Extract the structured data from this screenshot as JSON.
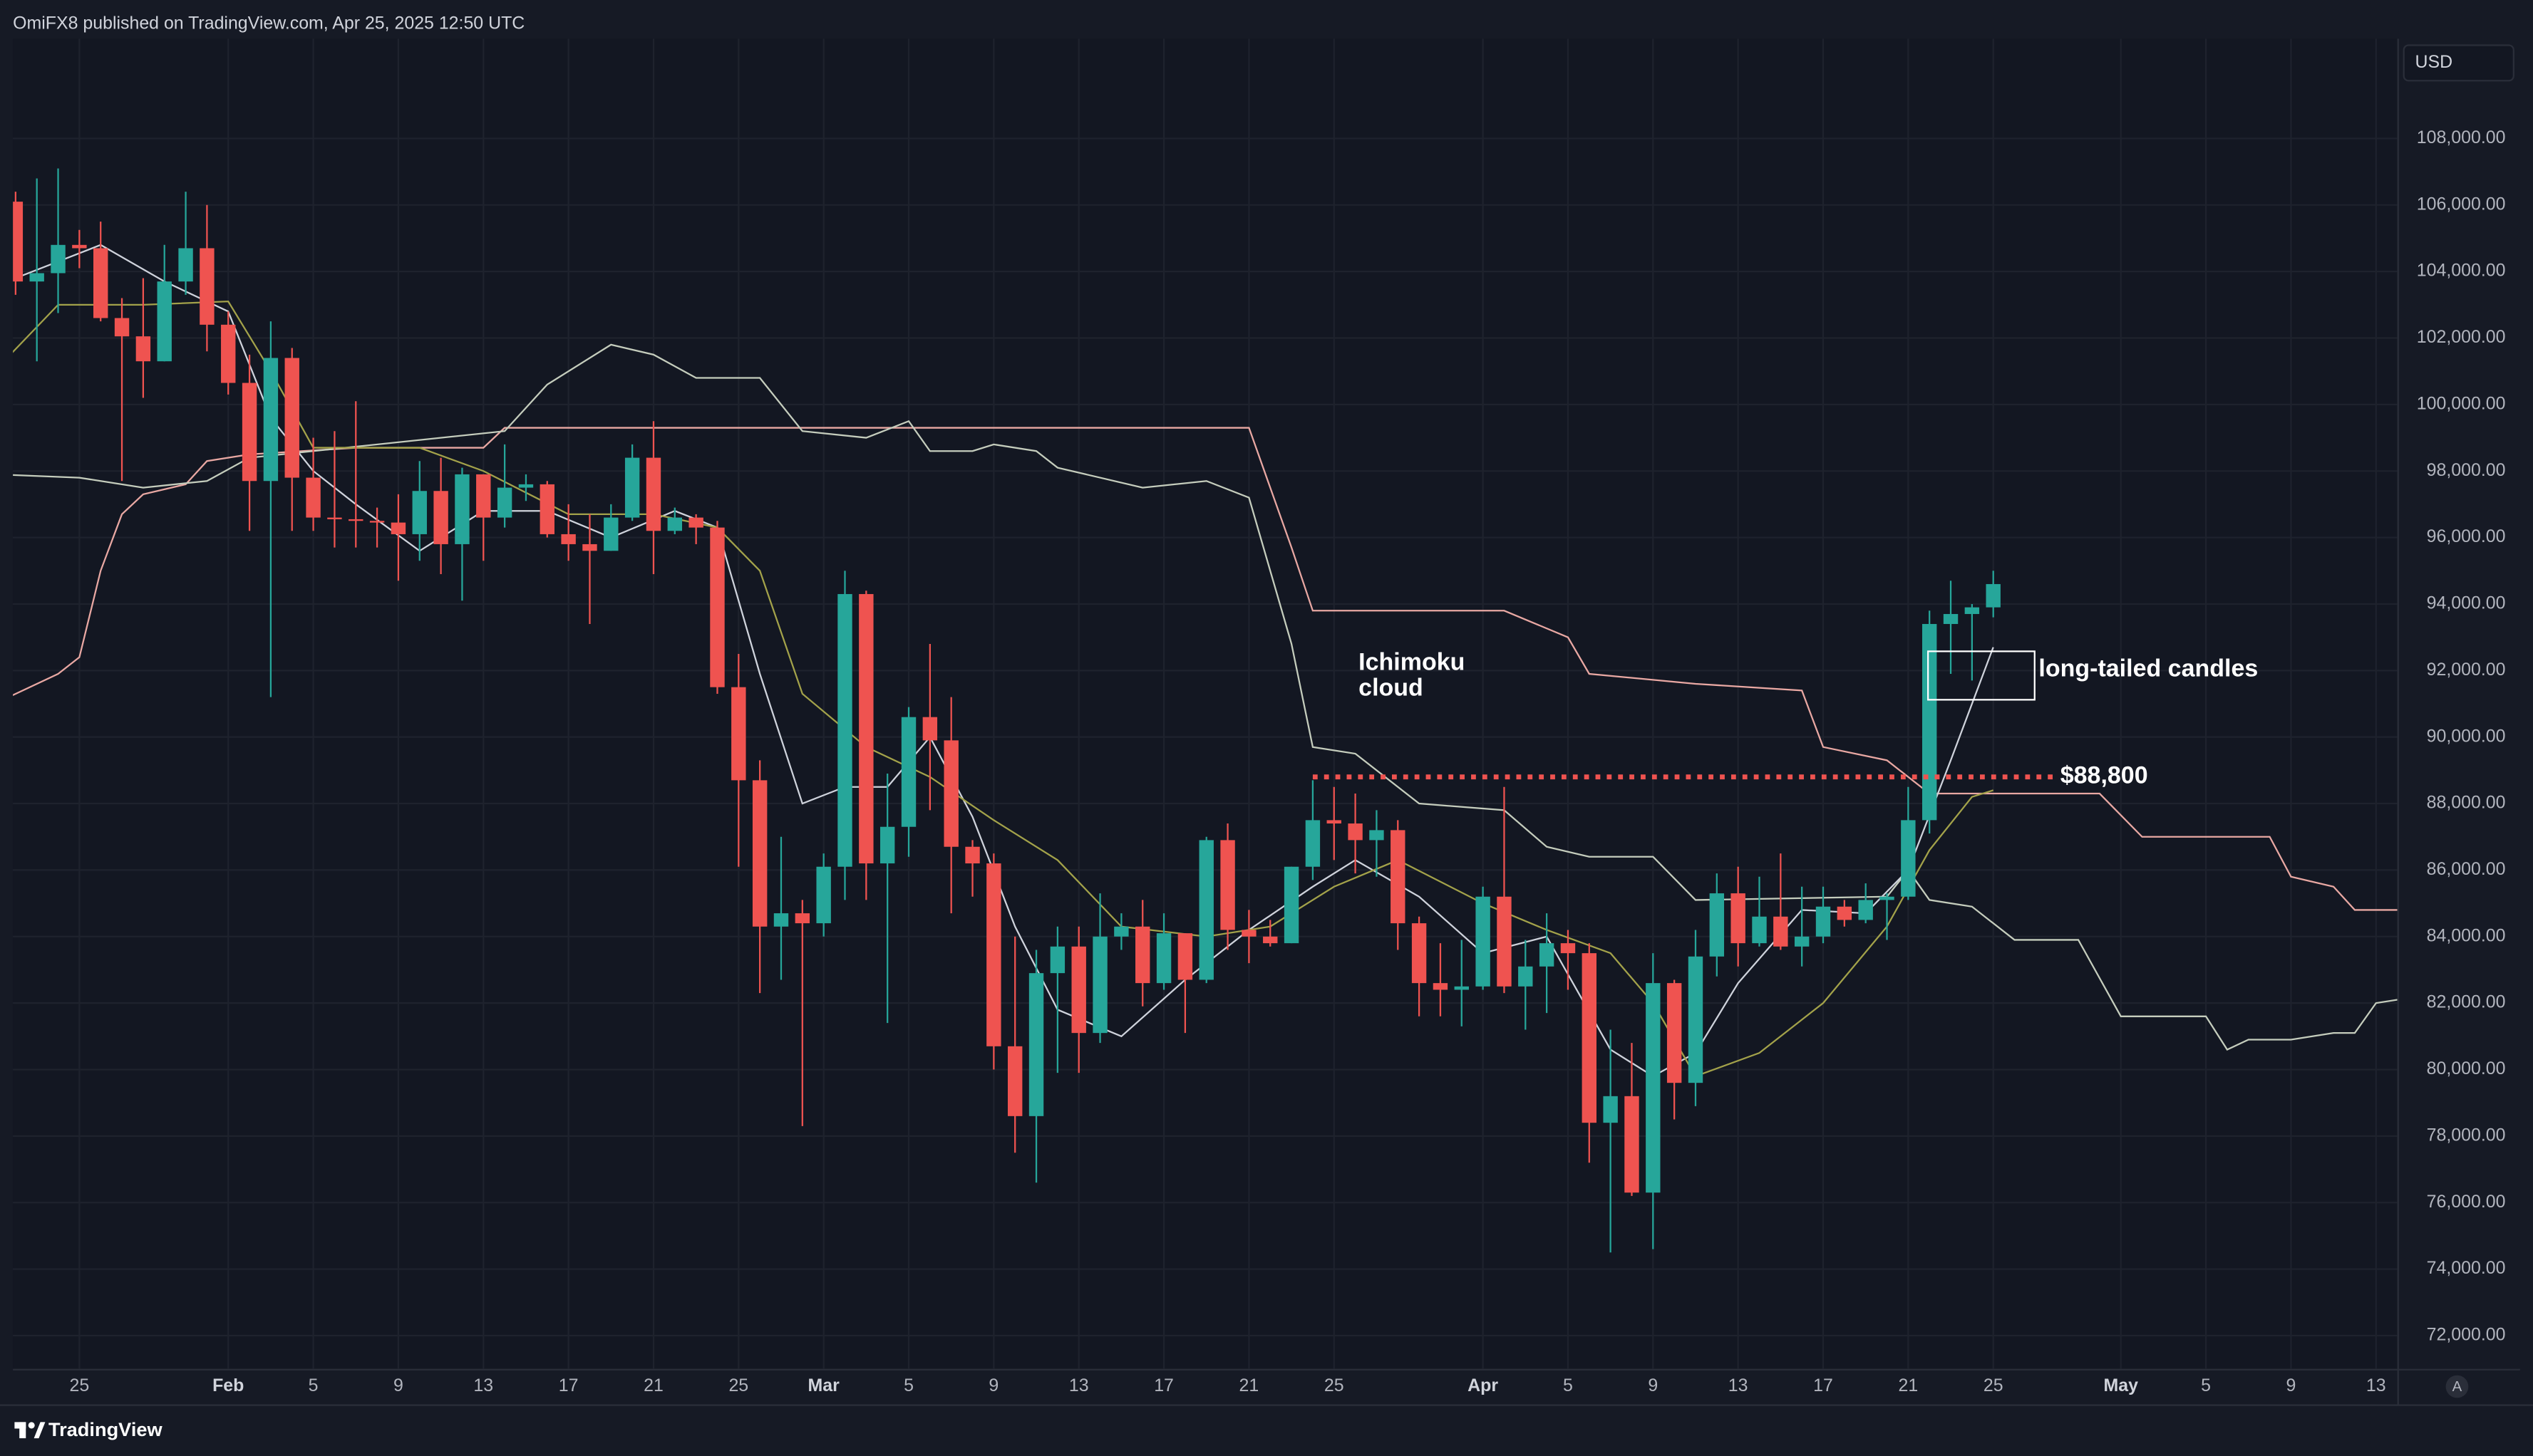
{
  "header": {
    "text": "OmiFX8 published on TradingView.com, Apr 25, 2025 12:50 UTC"
  },
  "footer": {
    "brand": "TradingView"
  },
  "chart_data": {
    "type": "candlestick",
    "currency": "USD",
    "scale_button": "A",
    "up_color": "#26a69a",
    "down_color": "#ef5350",
    "grid": true,
    "xlim": [
      "2025-01-21T21:00Z",
      "2025-05-14T00:00Z"
    ],
    "ylim": [
      71000,
      111000
    ],
    "xticks": [
      {
        "value": "2025-01-25",
        "label": "25"
      },
      {
        "value": "2025-02-01",
        "label": "Feb"
      },
      {
        "value": "2025-02-05",
        "label": "5"
      },
      {
        "value": "2025-02-09",
        "label": "9"
      },
      {
        "value": "2025-02-13",
        "label": "13"
      },
      {
        "value": "2025-02-17",
        "label": "17"
      },
      {
        "value": "2025-02-21",
        "label": "21"
      },
      {
        "value": "2025-02-25",
        "label": "25"
      },
      {
        "value": "2025-03-01",
        "label": "Mar"
      },
      {
        "value": "2025-03-05",
        "label": "5"
      },
      {
        "value": "2025-03-09",
        "label": "9"
      },
      {
        "value": "2025-03-13",
        "label": "13"
      },
      {
        "value": "2025-03-17",
        "label": "17"
      },
      {
        "value": "2025-03-21",
        "label": "21"
      },
      {
        "value": "2025-03-25",
        "label": "25"
      },
      {
        "value": "2025-04-01",
        "label": "Apr"
      },
      {
        "value": "2025-04-05",
        "label": "5"
      },
      {
        "value": "2025-04-09",
        "label": "9"
      },
      {
        "value": "2025-04-13",
        "label": "13"
      },
      {
        "value": "2025-04-17",
        "label": "17"
      },
      {
        "value": "2025-04-21",
        "label": "21"
      },
      {
        "value": "2025-04-25",
        "label": "25"
      },
      {
        "value": "2025-05-01",
        "label": "May"
      },
      {
        "value": "2025-05-05",
        "label": "5"
      },
      {
        "value": "2025-05-09",
        "label": "9"
      },
      {
        "value": "2025-05-13",
        "label": "13"
      }
    ],
    "yticks": [
      {
        "value": 72000,
        "label": "72,000.00"
      },
      {
        "value": 74000,
        "label": "74,000.00"
      },
      {
        "value": 76000,
        "label": "76,000.00"
      },
      {
        "value": 78000,
        "label": "78,000.00"
      },
      {
        "value": 80000,
        "label": "80,000.00"
      },
      {
        "value": 82000,
        "label": "82,000.00"
      },
      {
        "value": 84000,
        "label": "84,000.00"
      },
      {
        "value": 86000,
        "label": "86,000.00"
      },
      {
        "value": 88000,
        "label": "88,000.00"
      },
      {
        "value": 90000,
        "label": "90,000.00"
      },
      {
        "value": 92000,
        "label": "92,000.00"
      },
      {
        "value": 94000,
        "label": "94,000.00"
      },
      {
        "value": 96000,
        "label": "96,000.00"
      },
      {
        "value": 98000,
        "label": "98,000.00"
      },
      {
        "value": 100000,
        "label": "100,000.00"
      },
      {
        "value": 102000,
        "label": "102,000.00"
      },
      {
        "value": 104000,
        "label": "104,000.00"
      },
      {
        "value": 106000,
        "label": "106,000.00"
      },
      {
        "value": 108000,
        "label": "108,000.00"
      }
    ],
    "x": [
      "2025-01-22",
      "2025-01-23",
      "2025-01-24",
      "2025-01-25",
      "2025-01-26",
      "2025-01-27",
      "2025-01-28",
      "2025-01-29",
      "2025-01-30",
      "2025-01-31",
      "2025-02-01",
      "2025-02-02",
      "2025-02-03",
      "2025-02-04",
      "2025-02-05",
      "2025-02-06",
      "2025-02-07",
      "2025-02-08",
      "2025-02-09",
      "2025-02-10",
      "2025-02-11",
      "2025-02-12",
      "2025-02-13",
      "2025-02-14",
      "2025-02-15",
      "2025-02-16",
      "2025-02-17",
      "2025-02-18",
      "2025-02-19",
      "2025-02-20",
      "2025-02-21",
      "2025-02-22",
      "2025-02-23",
      "2025-02-24",
      "2025-02-25",
      "2025-02-26",
      "2025-02-27",
      "2025-02-28",
      "2025-03-01",
      "2025-03-02",
      "2025-03-03",
      "2025-03-04",
      "2025-03-05",
      "2025-03-06",
      "2025-03-07",
      "2025-03-08",
      "2025-03-09",
      "2025-03-10",
      "2025-03-11",
      "2025-03-12",
      "2025-03-13",
      "2025-03-14",
      "2025-03-15",
      "2025-03-16",
      "2025-03-17",
      "2025-03-18",
      "2025-03-19",
      "2025-03-20",
      "2025-03-21",
      "2025-03-22",
      "2025-03-23",
      "2025-03-24",
      "2025-03-25",
      "2025-03-26",
      "2025-03-27",
      "2025-03-28",
      "2025-03-29",
      "2025-03-30",
      "2025-03-31",
      "2025-04-01",
      "2025-04-02",
      "2025-04-03",
      "2025-04-04",
      "2025-04-05",
      "2025-04-06",
      "2025-04-07",
      "2025-04-08",
      "2025-04-09",
      "2025-04-10",
      "2025-04-11",
      "2025-04-12",
      "2025-04-13",
      "2025-04-14",
      "2025-04-15",
      "2025-04-16",
      "2025-04-17",
      "2025-04-18",
      "2025-04-19",
      "2025-04-20",
      "2025-04-21",
      "2025-04-22",
      "2025-04-23",
      "2025-04-24",
      "2025-04-25"
    ],
    "open": [
      106100,
      103700,
      103950,
      104800,
      104700,
      102600,
      102050,
      101300,
      103700,
      104700,
      102400,
      100650,
      97700,
      101400,
      97800,
      96600,
      96550,
      96500,
      96450,
      96100,
      97400,
      95800,
      97900,
      96600,
      97500,
      97600,
      96100,
      95800,
      95600,
      96600,
      98400,
      96200,
      96600,
      96300,
      91500,
      88700,
      84300,
      84700,
      84400,
      86100,
      94300,
      86200,
      87300,
      90600,
      89900,
      86700,
      86200,
      80700,
      78600,
      82900,
      83700,
      81100,
      84000,
      84300,
      82600,
      84100,
      82700,
      86900,
      84200,
      84000,
      83800,
      86100,
      87500,
      87400,
      86900,
      87200,
      84400,
      82600,
      82400,
      82500,
      85200,
      82500,
      83100,
      83800,
      83500,
      78400,
      79200,
      76300,
      82600,
      79600,
      83400,
      85300,
      83800,
      84600,
      83700,
      84000,
      84900,
      84500,
      85100,
      85200,
      87500,
      93400,
      93700,
      93900
    ],
    "high": [
      106400,
      106800,
      107100,
      105250,
      105500,
      103200,
      103800,
      104800,
      106400,
      106000,
      102800,
      101500,
      102500,
      101700,
      99000,
      99200,
      100100,
      96900,
      97300,
      98300,
      98400,
      98100,
      97900,
      98800,
      97900,
      97700,
      97000,
      96700,
      97000,
      98800,
      99500,
      96900,
      96700,
      96500,
      92500,
      89300,
      87000,
      85100,
      86500,
      95000,
      94400,
      88900,
      90900,
      92800,
      91200,
      86900,
      86500,
      84000,
      83600,
      84300,
      84300,
      85300,
      84700,
      85100,
      84700,
      84100,
      87000,
      87400,
      84800,
      84500,
      86100,
      88700,
      88500,
      88300,
      87800,
      87500,
      84600,
      83800,
      83900,
      85500,
      88500,
      83900,
      84700,
      84200,
      83800,
      81200,
      80800,
      83500,
      82700,
      84200,
      85900,
      86100,
      85800,
      86500,
      85500,
      85500,
      85100,
      85600,
      85300,
      88500,
      93800,
      94700,
      94000,
      95000
    ],
    "low": [
      103300,
      101300,
      102750,
      104100,
      102500,
      97700,
      100200,
      101300,
      103300,
      101600,
      100300,
      96200,
      91200,
      96200,
      96200,
      95700,
      95700,
      95700,
      94700,
      95300,
      94900,
      94100,
      95300,
      96300,
      97100,
      96000,
      95300,
      93400,
      95600,
      96500,
      94900,
      96100,
      95800,
      91300,
      86100,
      82300,
      82700,
      78300,
      84000,
      85100,
      85100,
      81400,
      86400,
      87800,
      84700,
      85200,
      80000,
      77500,
      76600,
      79900,
      79900,
      80800,
      83600,
      81900,
      82400,
      81100,
      82600,
      83600,
      83200,
      83700,
      83800,
      85700,
      86300,
      85900,
      85800,
      83600,
      81600,
      81600,
      81300,
      82400,
      82300,
      81200,
      81700,
      82400,
      77200,
      74500,
      76200,
      74600,
      78500,
      78900,
      82800,
      83100,
      83700,
      83600,
      83100,
      83800,
      84300,
      84400,
      83900,
      85100,
      87100,
      91900,
      91700,
      93600
    ],
    "close": [
      103700,
      103950,
      104800,
      104700,
      102600,
      102050,
      101300,
      103700,
      104700,
      102400,
      100650,
      97700,
      101400,
      97800,
      96600,
      96550,
      96500,
      96450,
      96100,
      97400,
      95800,
      97900,
      96600,
      97500,
      97600,
      96100,
      95800,
      95600,
      96600,
      98400,
      96200,
      96600,
      96300,
      91500,
      88700,
      84300,
      84700,
      84400,
      86100,
      94300,
      86200,
      87300,
      90600,
      89900,
      86700,
      86200,
      80700,
      78600,
      82900,
      83700,
      81100,
      84000,
      84300,
      82600,
      84100,
      82700,
      86900,
      84200,
      84000,
      83800,
      86100,
      87500,
      87400,
      86900,
      87200,
      84400,
      82600,
      82400,
      82500,
      85200,
      82500,
      83100,
      83800,
      83500,
      78400,
      79200,
      76300,
      82600,
      79600,
      83400,
      85300,
      83800,
      84600,
      83700,
      84000,
      84900,
      84500,
      85100,
      85200,
      87500,
      93400,
      93700,
      93900,
      94600
    ],
    "series": [
      {
        "color": "#e9a8a3",
        "x": [
          "2025-01-21",
          "2025-01-24",
          "2025-01-25",
          "2025-01-26",
          "2025-01-27",
          "2025-01-28",
          "2025-01-30",
          "2025-01-31",
          "2025-02-02",
          "2025-02-07",
          "2025-02-13",
          "2025-02-14",
          "2025-03-21",
          "2025-03-23",
          "2025-03-24",
          "2025-04-02",
          "2025-04-05",
          "2025-04-06",
          "2025-04-11",
          "2025-04-16",
          "2025-04-17",
          "2025-04-20",
          "2025-04-22",
          "2025-04-30",
          "2025-05-02",
          "2025-05-08",
          "2025-05-09",
          "2025-05-11",
          "2025-05-12",
          "2025-05-14"
        ],
        "values": [
          91000,
          91900,
          92400,
          95000,
          96700,
          97300,
          97600,
          98300,
          98500,
          98700,
          98700,
          99300,
          99300,
          95700,
          93800,
          93800,
          93000,
          91900,
          91600,
          91400,
          89700,
          89300,
          88300,
          88300,
          87000,
          87000,
          85800,
          85500,
          84800,
          84800
        ]
      },
      {
        "color": "#c5cdbd",
        "x": [
          "2025-01-21",
          "2025-01-25",
          "2025-01-28",
          "2025-01-31",
          "2025-02-02",
          "2025-02-14",
          "2025-02-16",
          "2025-02-19",
          "2025-02-21",
          "2025-02-23",
          "2025-02-26",
          "2025-02-28",
          "2025-03-03",
          "2025-03-05",
          "2025-03-06",
          "2025-03-08",
          "2025-03-09",
          "2025-03-11",
          "2025-03-12",
          "2025-03-14",
          "2025-03-16",
          "2025-03-19",
          "2025-03-21",
          "2025-03-23",
          "2025-03-24",
          "2025-03-26",
          "2025-03-29",
          "2025-04-02",
          "2025-04-04",
          "2025-04-06",
          "2025-04-09",
          "2025-04-11",
          "2025-04-20",
          "2025-04-21",
          "2025-04-22",
          "2025-04-24",
          "2025-04-26",
          "2025-04-29",
          "2025-05-01",
          "2025-05-05",
          "2025-05-06",
          "2025-05-07",
          "2025-05-09",
          "2025-05-11",
          "2025-05-12",
          "2025-05-13",
          "2025-05-14"
        ],
        "values": [
          97900,
          97800,
          97500,
          97700,
          98400,
          99200,
          100600,
          101800,
          101500,
          100800,
          100800,
          99200,
          99000,
          99500,
          98600,
          98600,
          98800,
          98600,
          98100,
          97800,
          97500,
          97700,
          97200,
          92800,
          89700,
          89500,
          88000,
          87800,
          86700,
          86400,
          86400,
          85100,
          85200,
          86000,
          85100,
          84900,
          83900,
          83900,
          81600,
          81600,
          80600,
          80900,
          80900,
          81100,
          81100,
          82000,
          82100
        ]
      },
      {
        "color": "#cfd3dc",
        "x": [
          "2025-01-22",
          "2025-01-26",
          "2025-01-29",
          "2025-02-01",
          "2025-02-03",
          "2025-02-05",
          "2025-02-07",
          "2025-02-10",
          "2025-02-13",
          "2025-02-16",
          "2025-02-19",
          "2025-02-22",
          "2025-02-24",
          "2025-02-26",
          "2025-02-28",
          "2025-03-02",
          "2025-03-04",
          "2025-03-06",
          "2025-03-08",
          "2025-03-10",
          "2025-03-12",
          "2025-03-15",
          "2025-03-18",
          "2025-03-21",
          "2025-03-24",
          "2025-03-26",
          "2025-03-29",
          "2025-04-01",
          "2025-04-04",
          "2025-04-07",
          "2025-04-09",
          "2025-04-11",
          "2025-04-13",
          "2025-04-16",
          "2025-04-19",
          "2025-04-21",
          "2025-04-23",
          "2025-04-25"
        ],
        "values": [
          103800,
          104800,
          103700,
          102800,
          99600,
          98000,
          97000,
          95600,
          96800,
          96800,
          96000,
          96800,
          96300,
          91900,
          88000,
          88500,
          88500,
          90000,
          87600,
          84300,
          81800,
          81000,
          82700,
          84200,
          85500,
          86300,
          85200,
          83500,
          84000,
          80600,
          79800,
          80500,
          82600,
          84800,
          84700,
          86000,
          89300,
          92700
        ]
      },
      {
        "color": "#a3a24a",
        "x": [
          "2025-01-21",
          "2025-01-24",
          "2025-01-28",
          "2025-02-01",
          "2025-02-03",
          "2025-02-05",
          "2025-02-10",
          "2025-02-13",
          "2025-02-17",
          "2025-02-21",
          "2025-02-24",
          "2025-02-26",
          "2025-02-28",
          "2025-03-03",
          "2025-03-06",
          "2025-03-09",
          "2025-03-12",
          "2025-03-15",
          "2025-03-19",
          "2025-03-22",
          "2025-03-25",
          "2025-03-28",
          "2025-04-01",
          "2025-04-04",
          "2025-04-07",
          "2025-04-09",
          "2025-04-11",
          "2025-04-14",
          "2025-04-17",
          "2025-04-20",
          "2025-04-22",
          "2025-04-24",
          "2025-04-25"
        ],
        "values": [
          101000,
          103000,
          103000,
          103100,
          101000,
          98700,
          98700,
          98000,
          96700,
          96700,
          96300,
          95000,
          91300,
          89700,
          88800,
          87500,
          86300,
          84300,
          84000,
          84300,
          85500,
          86300,
          85000,
          84200,
          83500,
          82000,
          79800,
          80500,
          82000,
          84300,
          86600,
          88200,
          88400
        ]
      }
    ],
    "level": {
      "value": 88800,
      "label": "$88,800",
      "color": "#ef5350",
      "from": "2025-03-24",
      "to": "2025-04-28"
    },
    "annotations": [
      {
        "lines": [
          "Ichimoku",
          "cloud"
        ]
      },
      {
        "text": "long-tailed candles"
      }
    ]
  }
}
